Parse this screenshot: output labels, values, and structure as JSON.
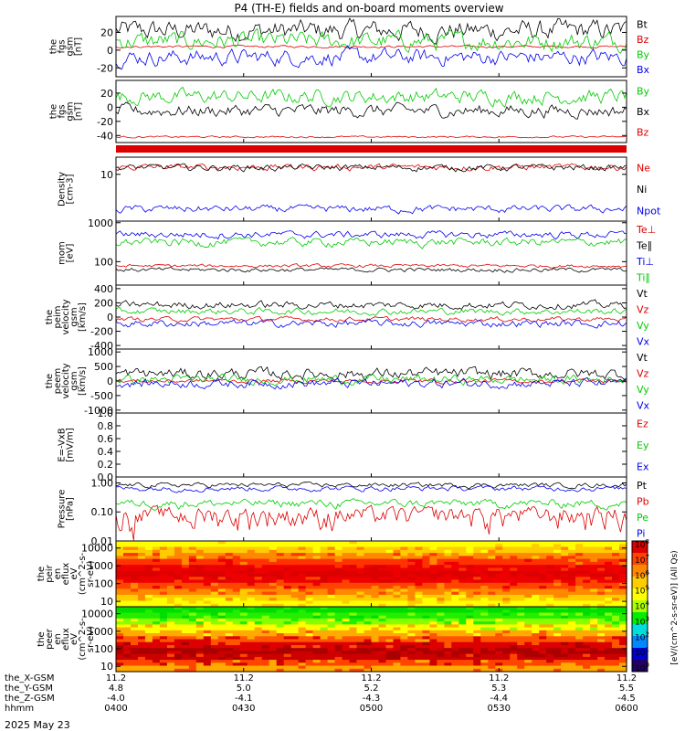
{
  "title": "P4 (TH-E) fields and on-board moments overview",
  "date": "2025 May 23",
  "chart_data": [
    {
      "type": "line",
      "ylabel": [
        "the",
        "fgs",
        "gsm",
        "[nT]"
      ],
      "ylim": [
        -30,
        38
      ],
      "ticks": [
        "20",
        "0",
        "-20"
      ],
      "tick_values": [
        20,
        0,
        -20
      ],
      "series": [
        {
          "name": "Bt",
          "color": "#000000",
          "base": 22,
          "amp": 9
        },
        {
          "name": "Bz",
          "color": "#dd0000",
          "base": 4,
          "amp": 1
        },
        {
          "name": "By",
          "color": "#00cc00",
          "base": 10,
          "amp": 8
        },
        {
          "name": "Bx",
          "color": "#0000ee",
          "base": -8,
          "amp": 7
        }
      ]
    },
    {
      "type": "line",
      "ylabel": [
        "the",
        "fgs",
        "gsm",
        "[nT]"
      ],
      "ylim": [
        -50,
        38
      ],
      "ticks": [
        "20",
        "0",
        "-20",
        "-40"
      ],
      "tick_values": [
        20,
        0,
        -20,
        -40
      ],
      "series": [
        {
          "name": "By",
          "color": "#00cc00",
          "base": 15,
          "amp": 8
        },
        {
          "name": "Bx",
          "color": "#000000",
          "base": -5,
          "amp": 7
        },
        {
          "name": "Bz",
          "color": "#dd0000",
          "base": -42,
          "amp": 1
        }
      ]
    },
    {
      "type": "line",
      "ylabel": [
        "Density",
        "[cm-3]"
      ],
      "ylim": [
        0.5,
        30
      ],
      "log": true,
      "ticks": [
        "10"
      ],
      "tick_values": [
        10
      ],
      "series": [
        {
          "name": "Ne",
          "color": "#dd0000",
          "base": 16,
          "amp": 2.5
        },
        {
          "name": "Ni",
          "color": "#000000",
          "base": 15.5,
          "amp": 2.5
        },
        {
          "name": "Npot",
          "color": "#0000ee",
          "base": 1.1,
          "amp": 0.2
        }
      ]
    },
    {
      "type": "line",
      "ylabel": [
        "mom",
        "[eV]"
      ],
      "ylim": [
        25,
        1100
      ],
      "log": true,
      "ticks": [
        "1000",
        "100"
      ],
      "tick_values": [
        1000,
        100
      ],
      "series": [
        {
          "name": "Te⊥",
          "color": "#dd0000",
          "base": 78,
          "amp": 6
        },
        {
          "name": "Te∥",
          "color": "#000000",
          "base": 62,
          "amp": 6
        },
        {
          "name": "Ti⊥",
          "color": "#0000ee",
          "base": 500,
          "amp": 80
        },
        {
          "name": "Ti∥",
          "color": "#00cc00",
          "base": 320,
          "amp": 60
        }
      ]
    },
    {
      "type": "line",
      "ylabel": [
        "the",
        "peim",
        "velocity",
        "gsm",
        "[km/s]"
      ],
      "ylim": [
        -450,
        450
      ],
      "ticks": [
        "400",
        "200",
        "0",
        "-200",
        "-400"
      ],
      "tick_values": [
        400,
        200,
        0,
        -200,
        -400
      ],
      "series": [
        {
          "name": "Vt",
          "color": "#000000",
          "base": 170,
          "amp": 40
        },
        {
          "name": "Vz",
          "color": "#dd0000",
          "base": -30,
          "amp": 25
        },
        {
          "name": "Vy",
          "color": "#00cc00",
          "base": 80,
          "amp": 35
        },
        {
          "name": "Vx",
          "color": "#0000ee",
          "base": -90,
          "amp": 40
        }
      ]
    },
    {
      "type": "line",
      "ylabel": [
        "the",
        "peem",
        "velocity",
        "gsm",
        "[km/s]"
      ],
      "ylim": [
        -1100,
        1100
      ],
      "ticks": [
        "1000",
        "500",
        "0",
        "-500",
        "-1000"
      ],
      "tick_values": [
        1000,
        500,
        0,
        -500,
        -1000
      ],
      "series": [
        {
          "name": "Vt",
          "color": "#000000",
          "base": 250,
          "amp": 150
        },
        {
          "name": "Vz",
          "color": "#dd0000",
          "base": 0,
          "amp": 60
        },
        {
          "name": "Vy",
          "color": "#00cc00",
          "base": 50,
          "amp": 120
        },
        {
          "name": "Vx",
          "color": "#0000ee",
          "base": -80,
          "amp": 120
        }
      ]
    },
    {
      "type": "line",
      "ylabel": [
        "E=-VxB",
        "[mV/m]"
      ],
      "ylim": [
        0,
        1
      ],
      "ticks": [
        "1.0",
        "0.8",
        "0.6",
        "0.4",
        "0.2",
        "0.0"
      ],
      "tick_values": [
        1,
        0.8,
        0.6,
        0.4,
        0.2,
        0
      ],
      "series": [
        {
          "name": "Ez",
          "color": "#dd0000"
        },
        {
          "name": "Ey",
          "color": "#00cc00"
        },
        {
          "name": "Ex",
          "color": "#0000ee"
        }
      ]
    },
    {
      "type": "line",
      "ylabel": [
        "Pressure",
        "[nPa]"
      ],
      "ylim": [
        0.01,
        1.6
      ],
      "log": true,
      "ticks": [
        "1.00",
        "0.10",
        "0.01"
      ],
      "tick_values": [
        1,
        0.1,
        0.01
      ],
      "series": [
        {
          "name": "Pt",
          "color": "#000000",
          "base": 0.85,
          "amp": 0.12
        },
        {
          "name": "Pb",
          "color": "#dd0000",
          "base": 0.08,
          "amp": 0.05
        },
        {
          "name": "Pe",
          "color": "#00cc00",
          "base": 0.2,
          "amp": 0.05
        },
        {
          "name": "Pi",
          "color": "#0000ee",
          "base": 0.65,
          "amp": 0.1
        }
      ]
    },
    {
      "type": "heatmap",
      "ylabel": [
        "the",
        "peir",
        "en",
        "eflux",
        "eV",
        "(cm^2-s-",
        "sr-eV)"
      ],
      "ylim": [
        5,
        25000
      ],
      "log": true,
      "ticks": [
        "10000",
        "1000",
        "100",
        "10"
      ],
      "tick_values": [
        10000,
        1000,
        100,
        10
      ]
    },
    {
      "type": "heatmap",
      "ylabel": [
        "the",
        "peer",
        "en",
        "eflux",
        "eV",
        "(cm^2-s-",
        "sr-eV)"
      ],
      "ylim": [
        5,
        25000
      ],
      "log": true,
      "ticks": [
        "10000",
        "1000",
        "100",
        "10"
      ],
      "tick_values": [
        10000,
        1000,
        100,
        10
      ]
    }
  ],
  "colorbar": {
    "ticks": [
      "10^8",
      "10^7",
      "10^6",
      "10^5",
      "10^4",
      "10^3",
      "10^2",
      "10^1",
      "10^0"
    ],
    "label": "[eV/(cm^2-s-sr-eV)] (All Qs)"
  },
  "xaxis": {
    "row_labels": [
      "the_X-GSM",
      "the_Y-GSM",
      "the_Z-GSM",
      "hhmm"
    ],
    "ticks": [
      {
        "x": "11.2",
        "y": "4.8",
        "z": "-4.0",
        "t": "0400"
      },
      {
        "x": "11.2",
        "y": "5.0",
        "z": "-4.1",
        "t": "0430"
      },
      {
        "x": "11.2",
        "y": "5.2",
        "z": "-4.3",
        "t": "0500"
      },
      {
        "x": "11.2",
        "y": "5.3",
        "z": "-4.4",
        "t": "0530"
      },
      {
        "x": "11.2",
        "y": "5.5",
        "z": "-4.5",
        "t": "0600"
      }
    ]
  }
}
